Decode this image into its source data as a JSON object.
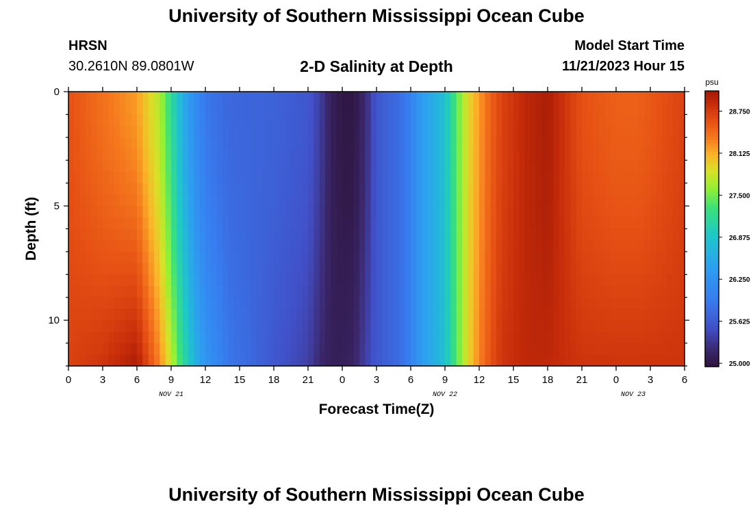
{
  "header": {
    "title": "University of Southern Mississippi Ocean Cube",
    "station": "HRSN",
    "coordinates": "30.2610N  89.0801W",
    "plot_title": "2-D Salinity at Depth",
    "model_start_label": "Model Start Time",
    "model_start_time": "11/21/2023 Hour 15"
  },
  "footer": {
    "title": "University of Southern Mississippi Ocean Cube"
  },
  "chart_data": {
    "type": "heatmap",
    "title": "2-D Salinity at Depth",
    "xlabel": "Forecast Time(Z)",
    "ylabel": "Depth (ft)",
    "x_tick_labels": [
      "0",
      "3",
      "6",
      "9",
      "12",
      "15",
      "18",
      "21",
      "0",
      "3",
      "6",
      "9",
      "12",
      "15",
      "18",
      "21",
      "0",
      "3",
      "6"
    ],
    "x_date_labels": [
      {
        "label": "NOV 21",
        "tick_index": 3
      },
      {
        "label": "NOV 22",
        "tick_index": 11
      },
      {
        "label": "NOV 23",
        "tick_index": 16.5
      }
    ],
    "x_range_hours": [
      0,
      54
    ],
    "y_tick_labels": [
      "0",
      "5",
      "10"
    ],
    "y_range_ft": [
      0,
      12
    ],
    "colorbar": {
      "unit": "psu",
      "ticks": [
        "28.750",
        "28.125",
        "27.500",
        "26.875",
        "26.250",
        "25.625",
        "25.000"
      ],
      "range": [
        24.95,
        29.1
      ]
    },
    "description_profile": {
      "hours": [
        0,
        3,
        6,
        8,
        9,
        10,
        11,
        12,
        14,
        18,
        21,
        22,
        23,
        24,
        25,
        26,
        27,
        29,
        30,
        31,
        33,
        34,
        35,
        36,
        37,
        38,
        39,
        40,
        42,
        45,
        48,
        50,
        54
      ],
      "surface_psu": [
        28.6,
        28.4,
        28.2,
        27.7,
        27.2,
        26.6,
        26.2,
        25.9,
        25.75,
        25.7,
        25.6,
        25.4,
        25.1,
        25.0,
        25.0,
        25.2,
        25.6,
        25.8,
        26.0,
        26.4,
        26.8,
        27.4,
        27.9,
        28.2,
        28.5,
        28.7,
        28.8,
        28.9,
        29.0,
        28.6,
        28.5,
        28.5,
        28.7
      ],
      "bottom_psu": [
        28.7,
        28.8,
        29.0,
        28.3,
        27.8,
        27.2,
        26.7,
        26.3,
        25.9,
        25.6,
        25.4,
        25.2,
        25.1,
        25.1,
        25.15,
        25.4,
        25.6,
        25.8,
        26.0,
        26.4,
        26.8,
        27.4,
        27.9,
        28.3,
        28.6,
        28.8,
        28.85,
        28.9,
        28.9,
        28.8,
        28.8,
        28.8,
        28.8
      ]
    }
  }
}
